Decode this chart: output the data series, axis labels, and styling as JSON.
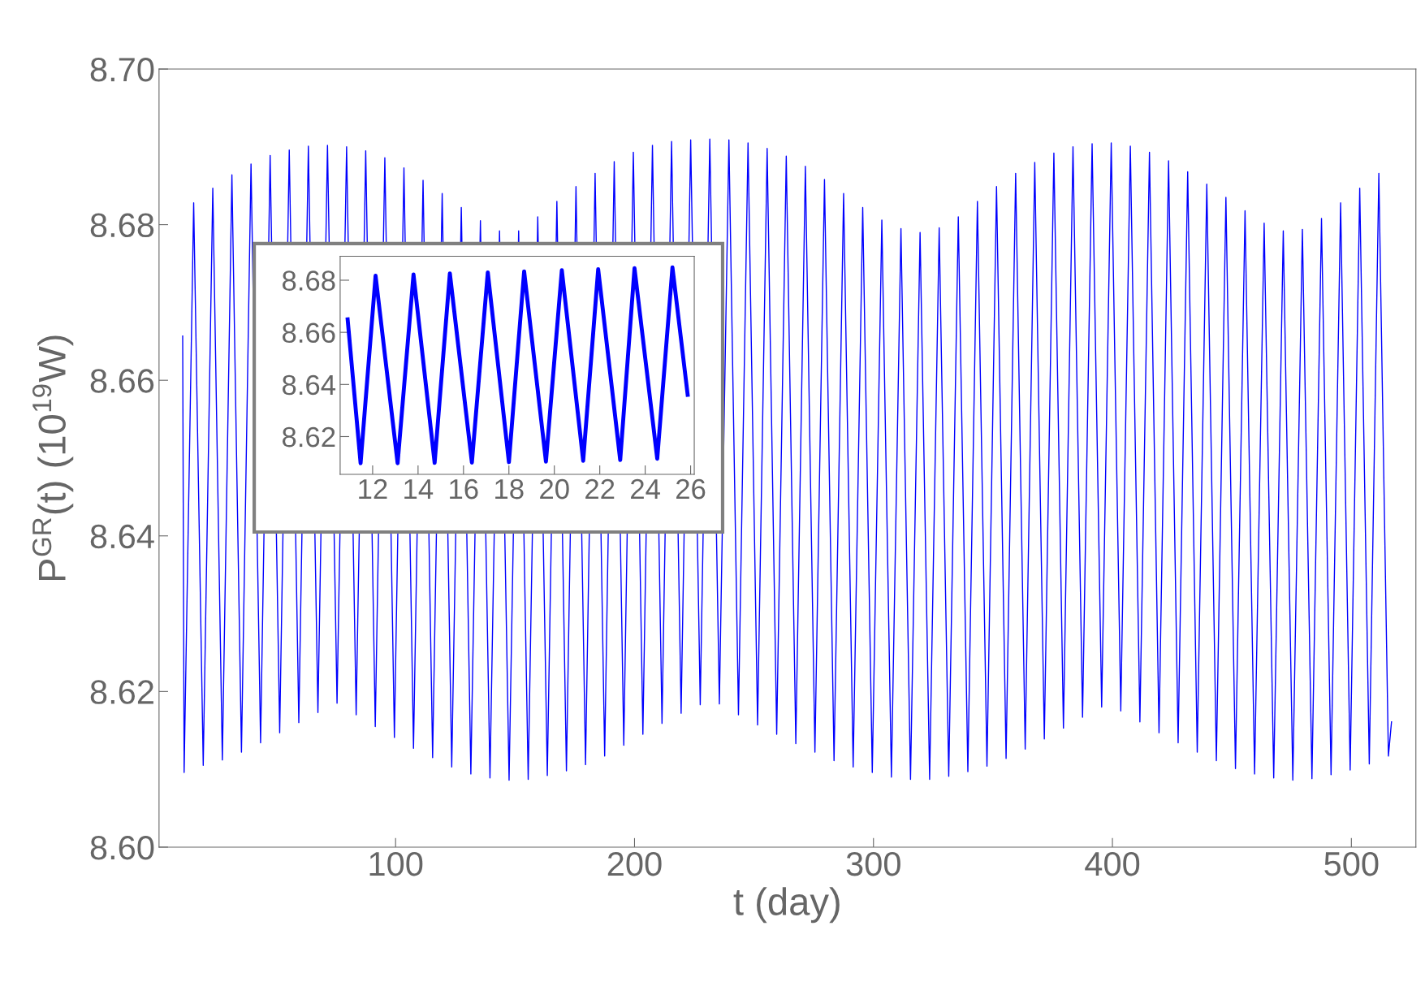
{
  "chart_data": [
    {
      "type": "line",
      "xlabel": "t (day)",
      "ylabel": "P$^{GR}$(t) (10$^{19}$W)",
      "xlim": [
        1,
        527
      ],
      "xticks": [
        100,
        200,
        300,
        400,
        500
      ],
      "ylim": [
        8.6,
        8.7
      ],
      "yticks": [
        {
          "value": 8.6,
          "label": "8.60"
        },
        8.62,
        8.64,
        8.66,
        8.68,
        {
          "value": 8.7,
          "label": "8.70"
        }
      ],
      "grid": false,
      "legend": false,
      "marker": "none",
      "line_style": "solid",
      "series": [
        {
          "color": "#0000ff",
          "x": [
            10.9,
            11.5,
            15.5,
            19.5,
            23.5,
            27.5,
            31.5,
            35.5,
            39.5,
            43.5,
            47.5,
            51.5,
            55.5,
            59.5,
            63.5,
            67.5,
            71.5,
            75.5,
            79.5,
            83.5,
            87.5,
            91.5,
            95.5,
            99.5,
            103.5,
            107.5,
            111.5,
            115.5,
            119.5,
            123.5,
            127.5,
            131.5,
            135.5,
            139.5,
            143.5,
            147.5,
            151.5,
            155.5,
            159.5,
            163.5,
            167.5,
            171.5,
            175.5,
            179.5,
            183.5,
            187.5,
            191.5,
            195.5,
            199.5,
            203.5,
            207.5,
            211.5,
            215.5,
            219.5,
            223.5,
            227.5,
            231.5,
            235.5,
            239.5,
            243.5,
            247.5,
            251.5,
            255.5,
            259.5,
            263.5,
            267.5,
            271.5,
            275.5,
            279.5,
            283.5,
            287.5,
            291.5,
            295.5,
            299.5,
            303.5,
            307.5,
            311.5,
            315.5,
            319.5,
            323.5,
            327.5,
            331.5,
            335.5,
            339.5,
            343.5,
            347.5,
            351.5,
            355.5,
            359.5,
            363.5,
            367.5,
            371.5,
            375.5,
            379.5,
            383.5,
            387.5,
            391.5,
            395.5,
            399.5,
            403.5,
            407.5,
            411.5,
            415.5,
            419.5,
            423.5,
            427.5,
            431.5,
            435.5,
            439.5,
            443.5,
            447.5,
            451.5,
            455.5,
            459.5,
            463.5,
            467.5,
            471.5,
            475.5,
            479.5,
            483.5,
            487.5,
            491.5,
            495.5,
            499.5,
            503.5,
            507.5,
            511.5,
            515.5,
            516.8
          ],
          "values": [
            8.6657,
            8.6096,
            8.6828,
            8.6105,
            8.6847,
            8.6112,
            8.6864,
            8.6122,
            8.6878,
            8.6134,
            8.6889,
            8.6147,
            8.6896,
            8.616,
            8.6901,
            8.6173,
            8.6902,
            8.6185,
            8.69,
            8.617,
            8.6895,
            8.6155,
            8.6886,
            8.6141,
            8.6873,
            8.6127,
            8.6857,
            8.6115,
            8.684,
            8.6103,
            8.6822,
            8.6094,
            8.6805,
            8.6089,
            8.6792,
            8.6086,
            8.6792,
            8.6087,
            8.681,
            8.6092,
            8.683,
            8.6098,
            8.6849,
            8.6106,
            8.6866,
            8.6117,
            8.6881,
            8.6131,
            8.6893,
            8.6145,
            8.6902,
            8.6159,
            8.6907,
            8.6172,
            8.6909,
            8.6183,
            8.691,
            8.6184,
            8.6909,
            8.617,
            8.6905,
            8.6157,
            8.6898,
            8.6145,
            8.6888,
            8.6133,
            8.6875,
            8.6122,
            8.6858,
            8.6111,
            8.684,
            8.6103,
            8.6822,
            8.6096,
            8.6806,
            8.609,
            8.6795,
            8.6087,
            8.679,
            8.6087,
            8.6796,
            8.6091,
            8.681,
            8.6097,
            8.683,
            8.6104,
            8.6849,
            8.6114,
            8.6866,
            8.6126,
            8.688,
            8.6139,
            8.6892,
            8.6153,
            8.69,
            8.6167,
            8.6904,
            8.618,
            8.6905,
            8.6175,
            8.6901,
            8.6161,
            8.6893,
            8.6147,
            8.6882,
            8.6134,
            8.6868,
            8.6122,
            8.6852,
            8.6111,
            8.6835,
            8.6101,
            8.6818,
            8.6094,
            8.6802,
            8.6089,
            8.6792,
            8.6086,
            8.6794,
            8.6088,
            8.6808,
            8.6093,
            8.6828,
            8.6099,
            8.6847,
            8.6107,
            8.6866,
            8.6117,
            8.6161
          ]
        }
      ]
    },
    {
      "type": "line",
      "xlim": [
        10.57,
        26.16
      ],
      "xticks": [
        12,
        14,
        16,
        18,
        20,
        22,
        24,
        26
      ],
      "ylim": [
        8.6055,
        8.6892
      ],
      "yticks": [
        8.62,
        8.64,
        8.66,
        8.68
      ],
      "grid": false,
      "legend": false,
      "marker": "none",
      "line_style": "solid",
      "series": [
        {
          "color": "#0000ff",
          "x": [
            10.9,
            11.47,
            12.13,
            13.1,
            13.8,
            14.73,
            15.4,
            16.37,
            17.07,
            18.0,
            18.67,
            19.63,
            20.33,
            21.27,
            21.93,
            22.9,
            23.53,
            24.53,
            25.2,
            25.87
          ],
          "values": [
            8.665,
            8.6098,
            8.6817,
            8.6098,
            8.6822,
            8.6099,
            8.6826,
            8.61,
            8.683,
            8.6102,
            8.6834,
            8.6104,
            8.6838,
            8.6107,
            8.6842,
            8.611,
            8.6846,
            8.6115,
            8.6849,
            8.636
          ]
        }
      ]
    }
  ]
}
